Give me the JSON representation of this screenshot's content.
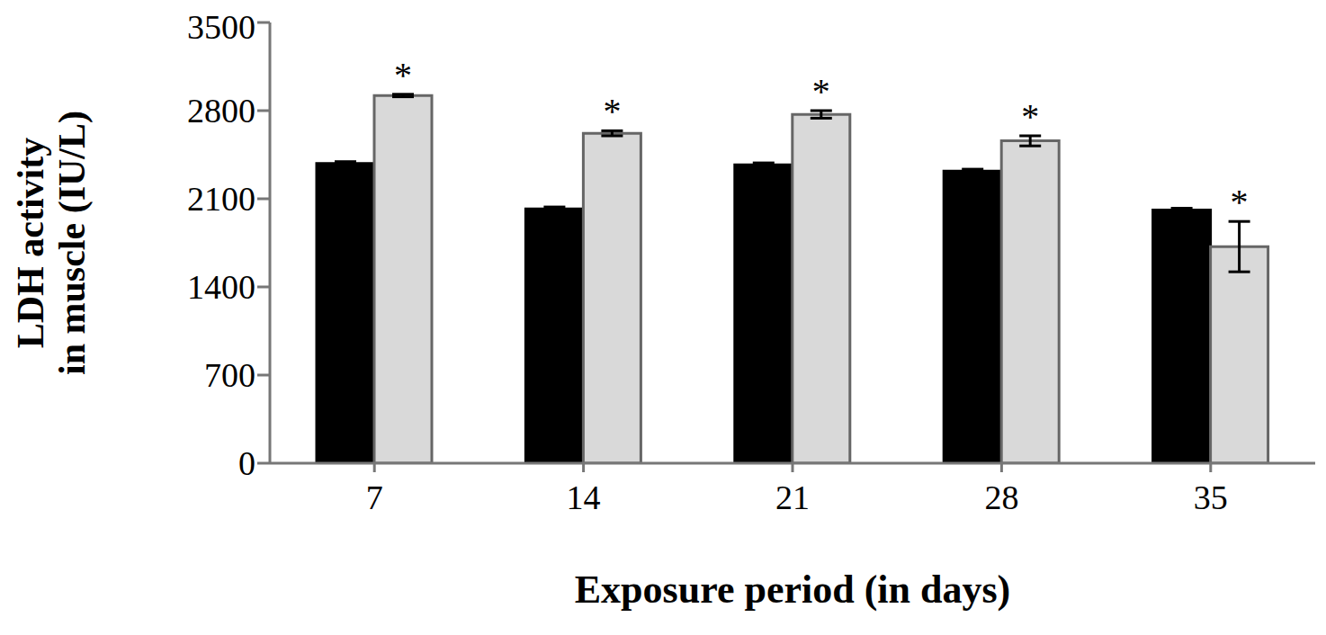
{
  "chart_data": {
    "type": "bar",
    "y_label": [
      "LDH activity",
      "in muscle (IU/L)"
    ],
    "x_label": "Exposure period (in days)",
    "categories": [
      "7",
      "14",
      "21",
      "28",
      "35"
    ],
    "series": [
      {
        "color": "#000000",
        "values": [
          2380,
          2020,
          2370,
          2320,
          2010
        ],
        "error": [
          15,
          15,
          15,
          15,
          15
        ]
      },
      {
        "color": "#d9d9d9",
        "values": [
          2920,
          2620,
          2770,
          2560,
          1720
        ],
        "error": [
          10,
          20,
          30,
          40,
          200
        ]
      }
    ],
    "ylim": [
      0,
      3500
    ],
    "yticks": [
      0,
      700,
      1400,
      2100,
      2800,
      3500
    ],
    "grid": false,
    "annotations": [
      {
        "text": "*",
        "category": "7",
        "series": 1
      },
      {
        "text": "*",
        "category": "14",
        "series": 1
      },
      {
        "text": "*",
        "category": "21",
        "series": 1
      },
      {
        "text": "*",
        "category": "28",
        "series": 1
      },
      {
        "text": "*",
        "category": "35",
        "series": 1
      }
    ]
  }
}
